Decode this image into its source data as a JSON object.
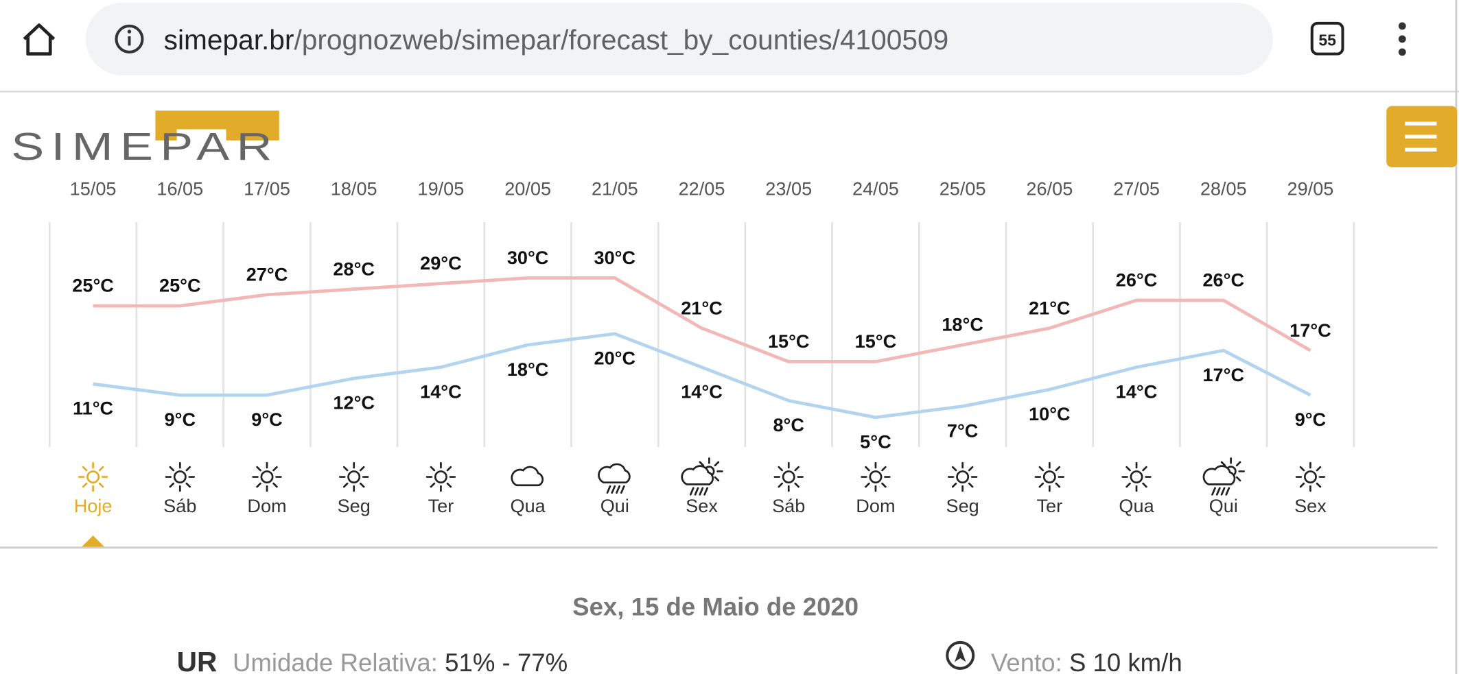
{
  "browser": {
    "url_domain": "simepar.br",
    "url_path": "/prognozweb/simepar/forecast_by_counties/4100509",
    "tab_count": "55"
  },
  "logo": "SIMEPAR",
  "chart_data": {
    "type": "line",
    "categories": [
      "15/05",
      "16/05",
      "17/05",
      "18/05",
      "19/05",
      "20/05",
      "21/05",
      "22/05",
      "23/05",
      "24/05",
      "25/05",
      "26/05",
      "27/05",
      "28/05",
      "29/05"
    ],
    "day_names": [
      "Hoje",
      "Sáb",
      "Dom",
      "Seg",
      "Ter",
      "Qua",
      "Qui",
      "Sex",
      "Sáb",
      "Dom",
      "Seg",
      "Ter",
      "Qua",
      "Qui",
      "Sex"
    ],
    "conditions": [
      "sun",
      "sun",
      "sun",
      "sun",
      "sun",
      "cloud",
      "rain",
      "rain-sun",
      "sun",
      "sun",
      "sun",
      "sun",
      "sun",
      "rain-sun",
      "sun"
    ],
    "selected": 0,
    "ylim": [
      0,
      40
    ],
    "series": [
      {
        "color": "#f2b8b8",
        "label_position": "above",
        "values": [
          25,
          25,
          27,
          28,
          29,
          30,
          30,
          21,
          15,
          15,
          18,
          21,
          26,
          26,
          17
        ],
        "value_labels": [
          "25°C",
          "25°C",
          "27°C",
          "28°C",
          "29°C",
          "30°C",
          "30°C",
          "21°C",
          "15°C",
          "15°C",
          "18°C",
          "21°C",
          "26°C",
          "26°C",
          "17°C"
        ]
      },
      {
        "color": "#b3d4ee",
        "label_position": "below",
        "values": [
          11,
          9,
          9,
          12,
          14,
          18,
          20,
          14,
          8,
          5,
          7,
          10,
          14,
          17,
          9
        ],
        "value_labels": [
          "11°C",
          "9°C",
          "9°C",
          "12°C",
          "14°C",
          "18°C",
          "20°C",
          "14°C",
          "8°C",
          "5°C",
          "7°C",
          "10°C",
          "14°C",
          "17°C",
          "9°C"
        ]
      }
    ]
  },
  "details": {
    "date": "Sex, 15 de Maio de 2020",
    "ur_abbr": "UR",
    "ur_label": "Umidade Relativa:",
    "ur_value": "51% - 77%",
    "wind_label": "Vento:",
    "wind_value": "S 10 km/h"
  }
}
